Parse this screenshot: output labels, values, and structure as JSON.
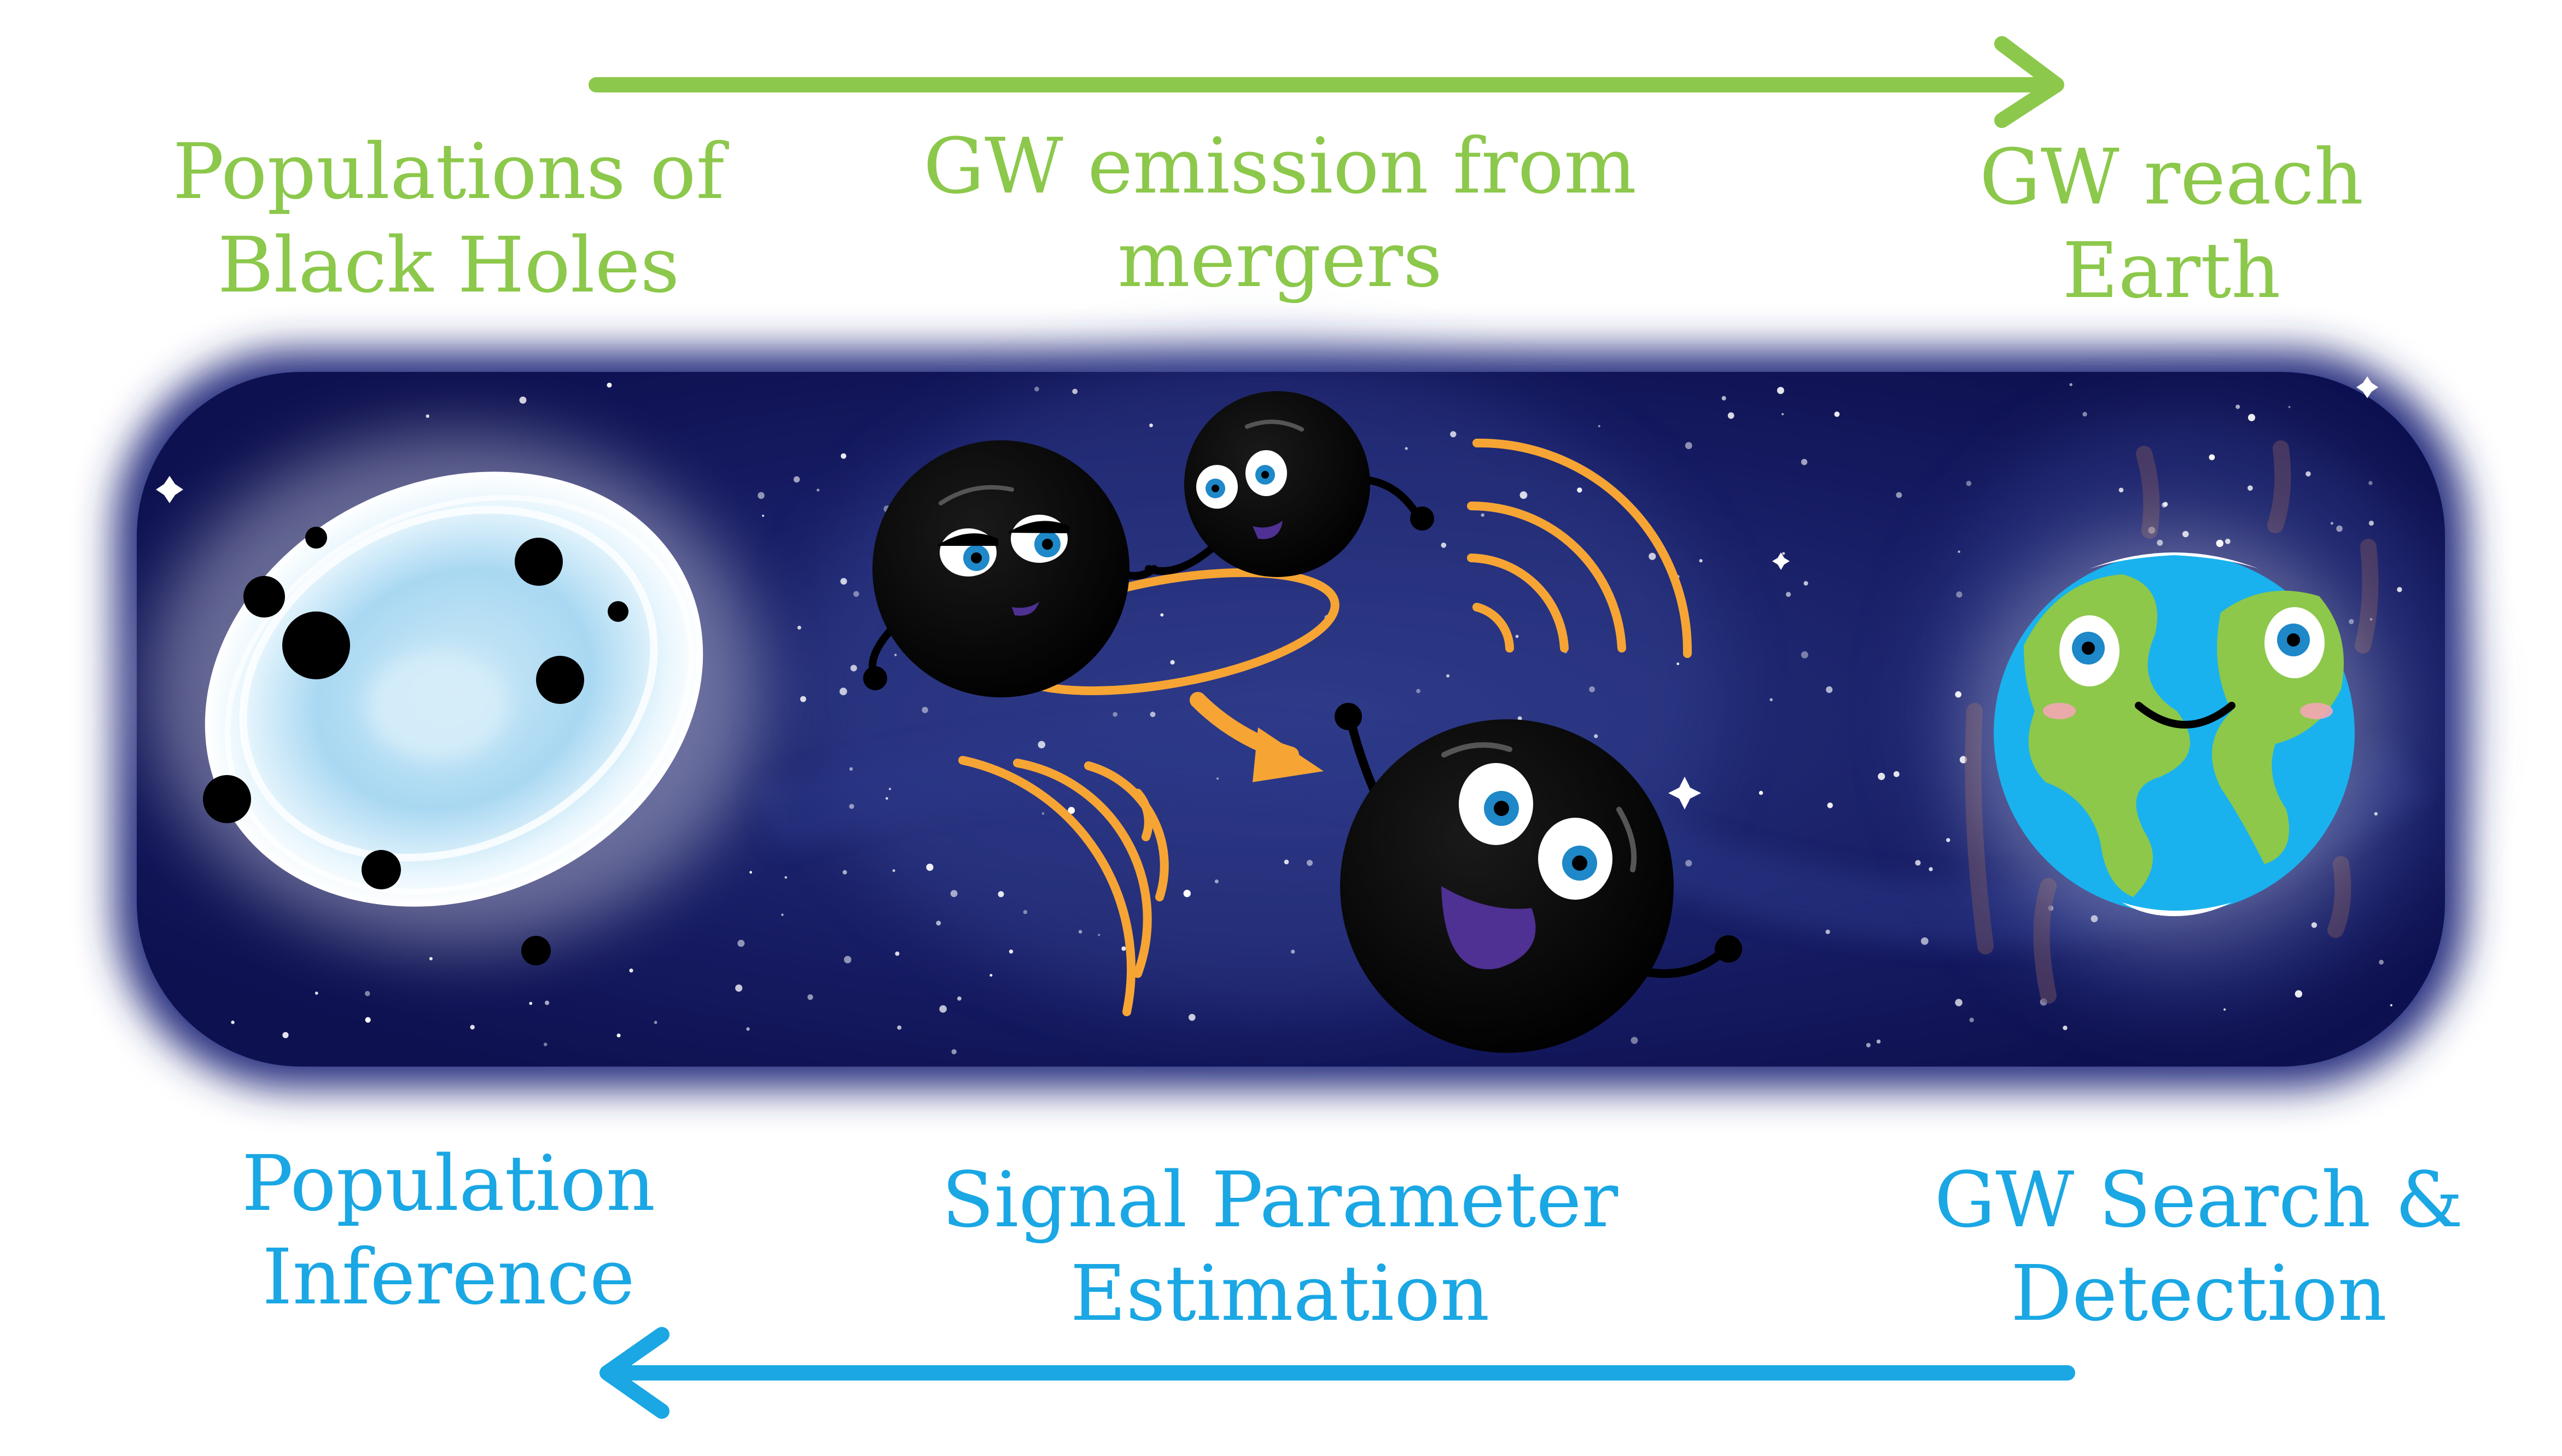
{
  "colors": {
    "green": "#8cc84b",
    "blue": "#1aa7e4",
    "space": "#14175a",
    "wave": "#f6a534",
    "earth_ocean": "#1ab2ee",
    "earth_land": "#8dc84a",
    "iris": "#1e88c8",
    "mouth": "#4e3192"
  },
  "forward": {
    "populations": {
      "line1": "Populations  of",
      "line2": "Black Holes"
    },
    "emission": {
      "line1": "GW emission from",
      "line2": "mergers"
    },
    "reach": {
      "line1": "GW reach",
      "line2": "Earth"
    }
  },
  "inverse": {
    "population_inference": {
      "line1": "Population",
      "line2": "Inference"
    },
    "parameter_estimation": {
      "line1": "Signal Parameter",
      "line2": "Estimation"
    },
    "search_detection": {
      "line1": "GW Search &",
      "line2": "Detection"
    }
  },
  "icons": {
    "forward_arrow": "arrow-right-icon",
    "inverse_arrow": "arrow-left-icon",
    "galaxy": "galaxy-icon",
    "binary": "black-hole-binary-icon",
    "remnant": "merged-black-hole-icon",
    "waves": "gravitational-wave-icon",
    "earth": "earth-icon"
  }
}
